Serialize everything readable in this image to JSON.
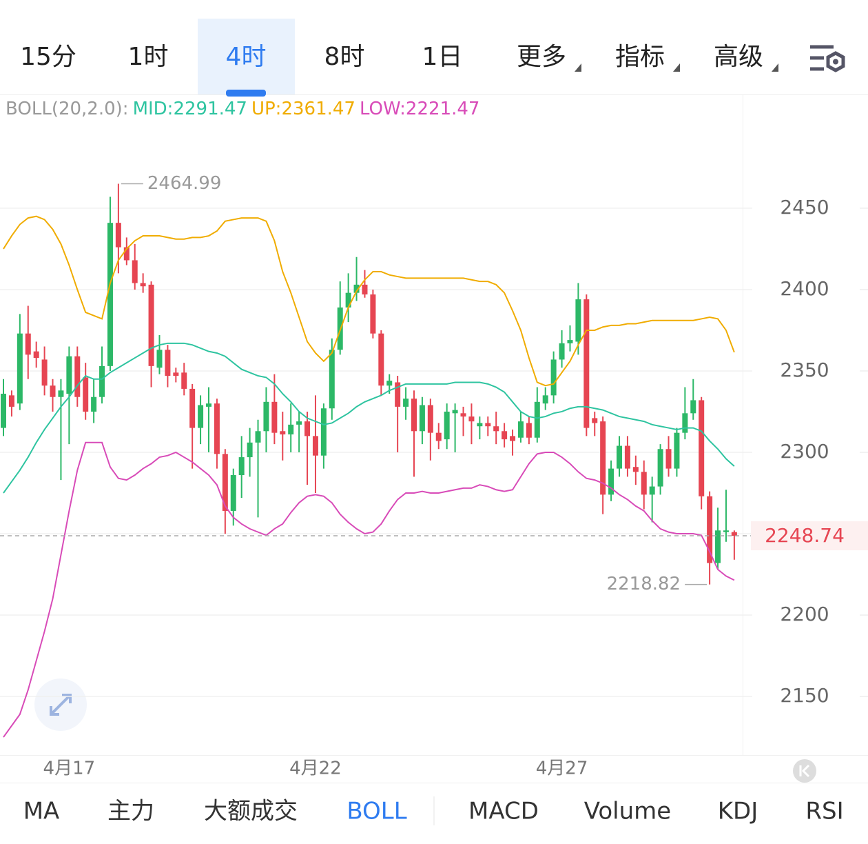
{
  "top_tabs": [
    {
      "label": "15分"
    },
    {
      "label": "1时"
    },
    {
      "label": "4时"
    },
    {
      "label": "8时"
    },
    {
      "label": "1日"
    },
    {
      "label": "更多",
      "menu": true
    },
    {
      "label": "指标",
      "menu": true
    },
    {
      "label": "高级",
      "menu": true
    }
  ],
  "top_active": 2,
  "bottom_tabs": [
    "MA",
    "主力",
    "大额成交",
    "BOLL",
    "MACD",
    "Volume",
    "KDJ",
    "RSI"
  ],
  "bottom_active": 3,
  "chart_data": {
    "type": "candlestick",
    "indicator": "BOLL(20,2.0):",
    "up_color": "#2cb867",
    "down_color": "#e64552",
    "categories": [
      null,
      null,
      null,
      null,
      null,
      null,
      null,
      null,
      "4月17",
      null,
      null,
      null,
      null,
      null,
      null,
      null,
      null,
      null,
      null,
      null,
      null,
      null,
      null,
      null,
      null,
      null,
      null,
      null,
      null,
      null,
      null,
      null,
      null,
      null,
      null,
      null,
      null,
      null,
      "4月22",
      null,
      null,
      null,
      null,
      null,
      null,
      null,
      null,
      null,
      null,
      null,
      null,
      null,
      null,
      null,
      null,
      null,
      null,
      null,
      null,
      null,
      null,
      null,
      null,
      null,
      null,
      null,
      null,
      null,
      "4月27",
      null,
      null,
      null,
      null,
      null,
      null,
      null,
      null,
      null,
      null,
      null,
      null,
      null,
      null,
      null,
      null,
      null,
      null,
      null,
      null,
      null
    ],
    "open": [
      2315,
      2335,
      2330,
      2373,
      2362,
      2357,
      2341,
      2334,
      2336,
      2359,
      2346,
      2325,
      2334,
      2353,
      2441,
      2426,
      2418,
      2404,
      2403,
      2352,
      2363,
      2349,
      2349,
      2339,
      2315,
      2328,
      2330,
      2299,
      2264,
      2286,
      2297,
      2306,
      2313,
      2331,
      2313,
      2311,
      2317,
      2319,
      2310,
      2298,
      2327,
      2363,
      2389,
      2398,
      2403,
      2397,
      2373,
      2341,
      2343,
      2328,
      2333,
      2313,
      2329,
      2312,
      2308,
      2324,
      2324,
      2322,
      2316,
      2318,
      2316,
      2313,
      2310,
      2309,
      2318,
      2309,
      2330,
      2335,
      2357,
      2367,
      2368,
      2394,
      2321,
      2319,
      2274,
      2290,
      2304,
      2291,
      2288,
      2274,
      2279,
      2302,
      2290,
      2312,
      2324,
      2332,
      2273,
      2232,
      2251,
      2251
    ],
    "high": [
      2345,
      2338,
      2385,
      2390,
      2368,
      2365,
      2345,
      2345,
      2365,
      2365,
      2355,
      2345,
      2365,
      2457,
      2464.99,
      2432,
      2428,
      2410,
      2405,
      2372,
      2366,
      2352,
      2355,
      2342,
      2335,
      2340,
      2333,
      2302,
      2290,
      2310,
      2315,
      2320,
      2340,
      2348,
      2325,
      2330,
      2325,
      2325,
      2335,
      2330,
      2370,
      2405,
      2410,
      2420,
      2412,
      2400,
      2375,
      2348,
      2347,
      2340,
      2338,
      2334,
      2333,
      2318,
      2330,
      2330,
      2328,
      2330,
      2322,
      2322,
      2325,
      2318,
      2314,
      2325,
      2322,
      2340,
      2340,
      2362,
      2375,
      2378,
      2404,
      2397,
      2325,
      2322,
      2295,
      2310,
      2310,
      2298,
      2295,
      2285,
      2305,
      2310,
      2315,
      2340,
      2345,
      2334,
      2276,
      2266,
      2277,
      2252
    ],
    "low": [
      2310,
      2322,
      2326,
      2345,
      2352,
      2335,
      2325,
      2283,
      2305,
      2328,
      2320,
      2318,
      2330,
      2350,
      2410,
      2415,
      2400,
      2398,
      2340,
      2348,
      2340,
      2343,
      2335,
      2290,
      2305,
      2300,
      2290,
      2250,
      2255,
      2272,
      2285,
      2260,
      2300,
      2305,
      2295,
      2300,
      2300,
      2280,
      2275,
      2290,
      2320,
      2360,
      2380,
      2393,
      2395,
      2370,
      2335,
      2336,
      2300,
      2320,
      2285,
      2305,
      2295,
      2302,
      2302,
      2300,
      2310,
      2305,
      2308,
      2310,
      2305,
      2303,
      2298,
      2306,
      2305,
      2306,
      2326,
      2330,
      2352,
      2362,
      2360,
      2310,
      2310,
      2262,
      2270,
      2285,
      2285,
      2280,
      2265,
      2257,
      2274,
      2285,
      2285,
      2308,
      2320,
      2265,
      2218.82,
      2228,
      2245,
      2234
    ],
    "close": [
      2336,
      2328,
      2373,
      2360,
      2358,
      2341,
      2334,
      2338,
      2359,
      2334,
      2325,
      2334,
      2353,
      2441,
      2426,
      2418,
      2404,
      2402,
      2353,
      2363,
      2347,
      2347,
      2339,
      2315,
      2329,
      2330,
      2299,
      2264,
      2286,
      2297,
      2306,
      2313,
      2331,
      2312,
      2311,
      2317,
      2319,
      2310,
      2298,
      2327,
      2363,
      2389,
      2398,
      2403,
      2397,
      2373,
      2341,
      2344,
      2328,
      2333,
      2313,
      2329,
      2312,
      2307,
      2325,
      2326,
      2322,
      2319,
      2318,
      2316,
      2313,
      2308,
      2307,
      2319,
      2309,
      2331,
      2335,
      2357,
      2367,
      2369,
      2394,
      2315,
      2318,
      2274,
      2290,
      2304,
      2290,
      2288,
      2274,
      2279,
      2302,
      2290,
      2312,
      2324,
      2332,
      2273,
      2232,
      2252,
      2252,
      2248.74
    ],
    "bands": [
      {
        "name": "MID",
        "legend": "MID:2291.47",
        "color": "#2ec4a0",
        "values": [
          2275,
          2282,
          2289,
          2297,
          2306,
          2314,
          2321,
          2328,
          2334,
          2341,
          2347,
          2345,
          2345,
          2349,
          2352,
          2355,
          2358,
          2361,
          2364,
          2366,
          2367,
          2367,
          2367,
          2366,
          2364,
          2362,
          2361,
          2359,
          2355,
          2351,
          2349,
          2347,
          2346,
          2342,
          2336,
          2331,
          2325,
          2321,
          2319,
          2317,
          2318,
          2321,
          2324,
          2328,
          2331,
          2333,
          2335,
          2338,
          2340,
          2342,
          2342,
          2342,
          2342,
          2342,
          2342,
          2343,
          2343,
          2343,
          2343,
          2342,
          2340,
          2337,
          2331,
          2325,
          2322,
          2321,
          2322,
          2324,
          2325,
          2327,
          2328,
          2328,
          2327,
          2326,
          2324,
          2322,
          2321,
          2320,
          2319,
          2317,
          2316,
          2315,
          2314,
          2315,
          2315,
          2313,
          2307,
          2302,
          2296,
          2291.47
        ]
      },
      {
        "name": "UP",
        "legend": "UP:2361.47",
        "color": "#f0ac00",
        "values": [
          2425,
          2433,
          2440,
          2444,
          2445,
          2443,
          2437,
          2428,
          2415,
          2400,
          2386,
          2384,
          2382,
          2404,
          2418,
          2425,
          2430,
          2433,
          2433,
          2433,
          2432,
          2431,
          2431,
          2432,
          2432,
          2433,
          2436,
          2442,
          2443,
          2444,
          2444,
          2444,
          2442,
          2430,
          2411,
          2398,
          2383,
          2368,
          2361,
          2356,
          2361,
          2375,
          2389,
          2399,
          2406,
          2411,
          2411,
          2409,
          2408,
          2407,
          2407,
          2407,
          2407,
          2407,
          2407,
          2407,
          2407,
          2406,
          2405,
          2405,
          2403,
          2398,
          2387,
          2375,
          2358,
          2343,
          2341,
          2342,
          2349,
          2356,
          2366,
          2375,
          2375,
          2377,
          2378,
          2378,
          2379,
          2379,
          2380,
          2381,
          2381,
          2381,
          2381,
          2381,
          2381,
          2382,
          2383,
          2382,
          2375,
          2361.47
        ]
      },
      {
        "name": "LOW",
        "legend": "LOW:2221.47",
        "color": "#d84bb8",
        "values": [
          2125,
          2132,
          2139,
          2154,
          2172,
          2190,
          2210,
          2237,
          2264,
          2289,
          2306,
          2306,
          2306,
          2291,
          2284,
          2283,
          2286,
          2290,
          2293,
          2297,
          2298,
          2300,
          2297,
          2294,
          2290,
          2286,
          2280,
          2267,
          2260,
          2256,
          2253,
          2251,
          2249,
          2253,
          2256,
          2263,
          2269,
          2273,
          2274,
          2273,
          2269,
          2262,
          2257,
          2253,
          2250,
          2251,
          2256,
          2264,
          2271,
          2275,
          2275,
          2276,
          2275,
          2275,
          2276,
          2277,
          2278,
          2278,
          2280,
          2279,
          2277,
          2276,
          2277,
          2285,
          2293,
          2299,
          2300,
          2300,
          2297,
          2293,
          2288,
          2284,
          2283,
          2281,
          2278,
          2274,
          2271,
          2267,
          2264,
          2258,
          2253,
          2251,
          2250,
          2250,
          2250,
          2249,
          2239,
          2228,
          2224,
          2221.47
        ]
      }
    ],
    "max_label": "2464.99",
    "min_label": "2218.82",
    "last_label": "2248.74",
    "ylim": [
      2114,
      2518.6
    ],
    "yticks": [
      2150,
      2200,
      2250,
      2300,
      2350,
      2400,
      2450
    ],
    "grid": true
  }
}
